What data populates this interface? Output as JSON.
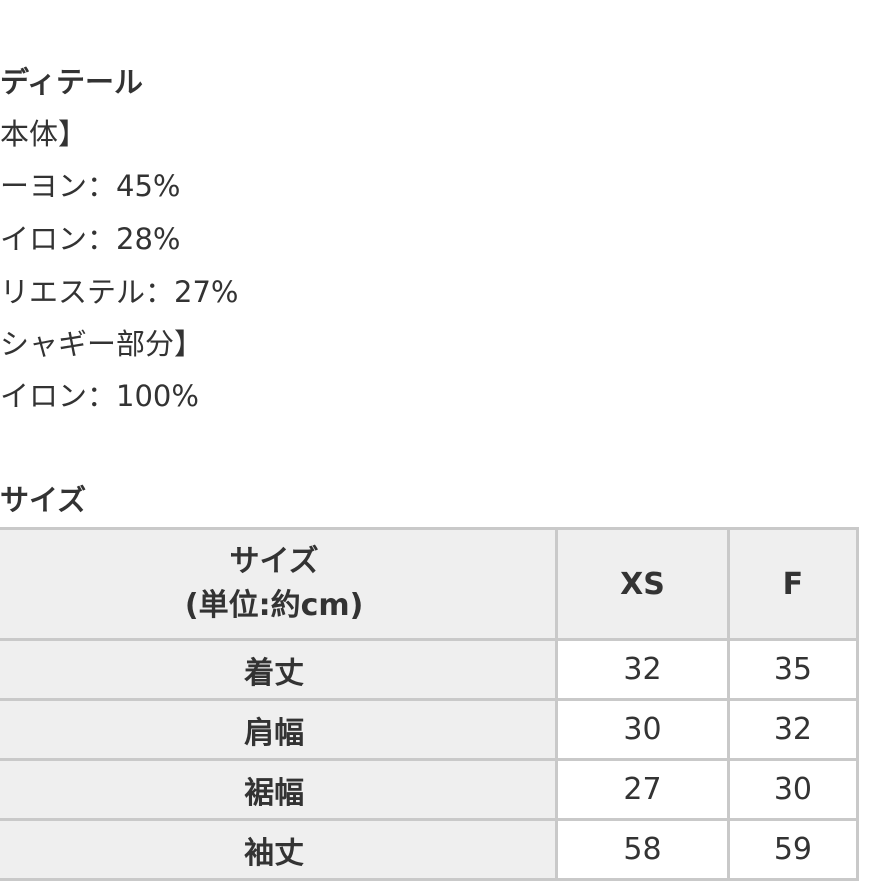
{
  "details": {
    "title": "ディテール",
    "lines": [
      "本体】",
      "ーヨン：45%",
      "イロン：28%",
      "リエステル：27%",
      "シャギー部分】",
      "イロン：100%"
    ]
  },
  "size_section": {
    "title": "サイズ",
    "table": {
      "header": {
        "label_line1": "サイズ",
        "label_line2": "(単位:約cm)",
        "columns": [
          "XS",
          "F"
        ]
      },
      "rows": [
        {
          "label": "着丈",
          "values": [
            "32",
            "35"
          ]
        },
        {
          "label": "肩幅",
          "values": [
            "30",
            "32"
          ]
        },
        {
          "label": "裾幅",
          "values": [
            "27",
            "30"
          ]
        },
        {
          "label": "袖丈",
          "values": [
            "58",
            "59"
          ]
        }
      ]
    }
  }
}
